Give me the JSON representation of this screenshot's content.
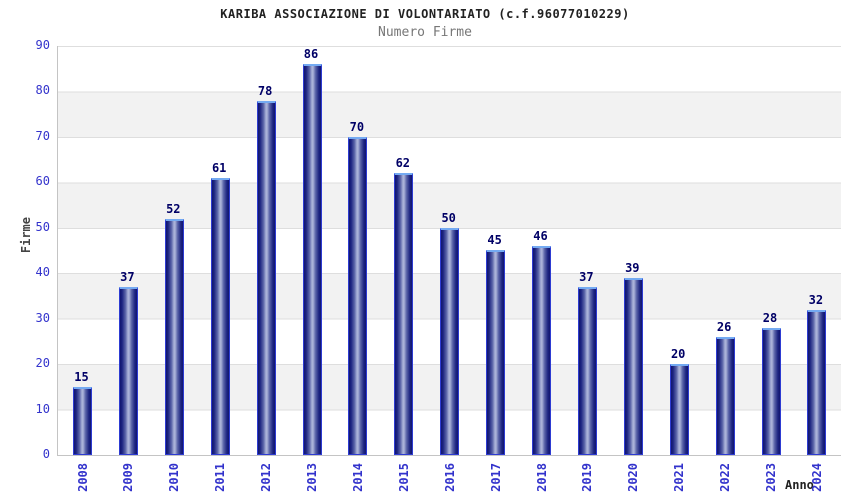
{
  "chart_data": {
    "type": "bar",
    "title": "KARIBA ASSOCIAZIONE DI VOLONTARIATO (c.f.96077010229)",
    "subtitle": "Numero Firme",
    "xlabel": "Anno",
    "ylabel": "Firme",
    "categories": [
      "2008",
      "2009",
      "2010",
      "2011",
      "2012",
      "2013",
      "2014",
      "2015",
      "2016",
      "2017",
      "2018",
      "2019",
      "2020",
      "2021",
      "2022",
      "2023",
      "2024"
    ],
    "values": [
      15,
      37,
      52,
      61,
      78,
      86,
      70,
      62,
      50,
      45,
      46,
      37,
      39,
      20,
      26,
      28,
      32
    ],
    "ylim": [
      0,
      90
    ],
    "yticks": [
      0,
      10,
      20,
      30,
      40,
      50,
      60,
      70,
      80,
      90
    ],
    "grid": "horizontal-bands",
    "legend": "none",
    "colors": {
      "bar_edge": "#11166f",
      "bar_center": "#aab2d8",
      "bar_outline": "#2d3bd2",
      "bar_top_cap": "#74aaf2",
      "value_label": "#000066",
      "tick_label": "#3333cc",
      "band": "#f2f2f2",
      "gridline": "#dedede",
      "axis_line": "#c4c4c4",
      "title": "#222222",
      "subtitle": "#777777",
      "ylabel": "#444444",
      "xlabel": "#222222",
      "background": "#ffffff"
    }
  }
}
